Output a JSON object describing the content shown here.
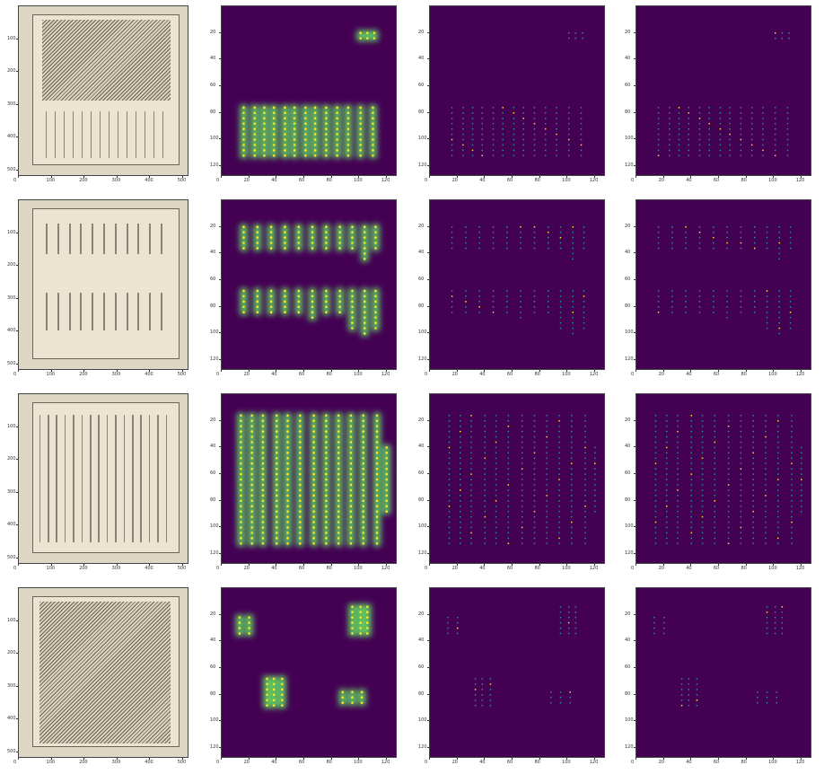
{
  "colors": {
    "viridis_bg": "#440154",
    "viridis_mid": "#21918c",
    "viridis_high": "#5ec962",
    "viridis_peak": "#fde725",
    "paper": "#ece4d0",
    "ink": "#3a352c"
  },
  "rows": [
    {
      "image_axes": {
        "x_ticks": [
          "0",
          "100",
          "200",
          "300",
          "400",
          "500"
        ],
        "y_ticks": [
          "100",
          "200",
          "300",
          "400",
          "500"
        ],
        "ylim": [
          0,
          520
        ],
        "xlim": [
          0,
          520
        ]
      },
      "map_axes": {
        "x_ticks": [
          "0",
          "20",
          "40",
          "60",
          "80",
          "100",
          "120"
        ],
        "y_ticks": [
          "20",
          "40",
          "60",
          "80",
          "100",
          "120"
        ],
        "ylim": [
          0,
          128
        ],
        "xlim": [
          0,
          128
        ]
      },
      "chart_data": {
        "type": "heatmap",
        "columns_x": [
          16,
          24,
          31,
          38,
          46,
          53,
          61,
          68,
          76,
          84,
          92,
          101,
          110
        ],
        "column_y_ranges": [
          [
            76,
            112
          ],
          [
            76,
            112
          ],
          [
            76,
            112
          ],
          [
            76,
            112
          ],
          [
            76,
            112
          ],
          [
            76,
            112
          ],
          [
            76,
            112
          ],
          [
            76,
            112
          ],
          [
            76,
            112
          ],
          [
            76,
            112
          ],
          [
            76,
            112
          ],
          [
            76,
            112
          ],
          [
            76,
            112
          ]
        ],
        "extra_clusters": [
          {
            "x": [
              101,
              106,
              111
            ],
            "y_range": [
              20,
              26
            ]
          }
        ]
      }
    },
    {
      "image_axes": {
        "x_ticks": [
          "0",
          "100",
          "200",
          "300",
          "400",
          "500"
        ],
        "y_ticks": [
          "100",
          "200",
          "300",
          "400",
          "500"
        ],
        "ylim": [
          0,
          520
        ],
        "xlim": [
          0,
          520
        ]
      },
      "map_axes": {
        "x_ticks": [
          "0",
          "20",
          "40",
          "60",
          "80",
          "100",
          "120"
        ],
        "y_ticks": [
          "20",
          "40",
          "60",
          "80",
          "100",
          "120"
        ],
        "ylim": [
          0,
          128
        ],
        "xlim": [
          0,
          128
        ]
      },
      "chart_data": {
        "type": "heatmap",
        "columns_x": [
          16,
          26,
          36,
          46,
          56,
          66,
          76,
          86,
          95,
          104,
          112
        ],
        "column_y_ranges": [
          [
            20,
            38
          ],
          [
            20,
            36
          ],
          [
            20,
            36
          ],
          [
            20,
            36
          ],
          [
            20,
            38
          ],
          [
            20,
            38
          ],
          [
            20,
            36
          ],
          [
            20,
            38
          ],
          [
            20,
            38
          ],
          [
            20,
            44
          ],
          [
            20,
            38
          ]
        ],
        "second_block_y_ranges": [
          [
            68,
            84
          ],
          [
            68,
            84
          ],
          [
            68,
            84
          ],
          [
            68,
            84
          ],
          [
            68,
            84
          ],
          [
            68,
            88
          ],
          [
            68,
            84
          ],
          [
            68,
            84
          ],
          [
            68,
            96
          ],
          [
            68,
            100
          ],
          [
            68,
            96
          ]
        ]
      }
    },
    {
      "image_axes": {
        "x_ticks": [
          "0",
          "100",
          "200",
          "300",
          "400",
          "500"
        ],
        "y_ticks": [
          "100",
          "200",
          "300",
          "400",
          "500"
        ],
        "ylim": [
          0,
          520
        ],
        "xlim": [
          0,
          520
        ]
      },
      "map_axes": {
        "x_ticks": [
          "0",
          "20",
          "40",
          "60",
          "80",
          "100",
          "120"
        ],
        "y_ticks": [
          "20",
          "40",
          "60",
          "80",
          "100",
          "120"
        ],
        "ylim": [
          0,
          128
        ],
        "xlim": [
          0,
          128
        ]
      },
      "chart_data": {
        "type": "heatmap",
        "columns_x": [
          14,
          22,
          30,
          40,
          48,
          57,
          67,
          76,
          85,
          94,
          103,
          113,
          120
        ],
        "column_y_ranges": [
          [
            16,
            112
          ],
          [
            16,
            112
          ],
          [
            16,
            112
          ],
          [
            16,
            112
          ],
          [
            16,
            112
          ],
          [
            16,
            112
          ],
          [
            16,
            112
          ],
          [
            16,
            112
          ],
          [
            16,
            112
          ],
          [
            16,
            112
          ],
          [
            16,
            112
          ],
          [
            16,
            112
          ],
          [
            40,
            90
          ]
        ]
      }
    },
    {
      "image_axes": {
        "x_ticks": [
          "0",
          "100",
          "200",
          "300",
          "400",
          "500"
        ],
        "y_ticks": [
          "100",
          "200",
          "300",
          "400",
          "500"
        ],
        "ylim": [
          0,
          520
        ],
        "xlim": [
          0,
          520
        ]
      },
      "map_axes": {
        "x_ticks": [
          "0",
          "20",
          "40",
          "60",
          "80",
          "100",
          "120"
        ],
        "y_ticks": [
          "20",
          "40",
          "60",
          "80",
          "100",
          "120"
        ],
        "ylim": [
          0,
          128
        ],
        "xlim": [
          0,
          128
        ]
      },
      "chart_data": {
        "type": "heatmap",
        "clusters": [
          {
            "x": [
              13,
              20
            ],
            "y_range": [
              22,
              34
            ]
          },
          {
            "x": [
              95,
              101,
              106
            ],
            "y_range": [
              14,
              34
            ]
          },
          {
            "x": [
              33,
              38,
              44
            ],
            "y_range": [
              68,
              88
            ]
          },
          {
            "x": [
              88,
              95,
              102
            ],
            "y_range": [
              78,
              86
            ]
          }
        ]
      }
    }
  ]
}
